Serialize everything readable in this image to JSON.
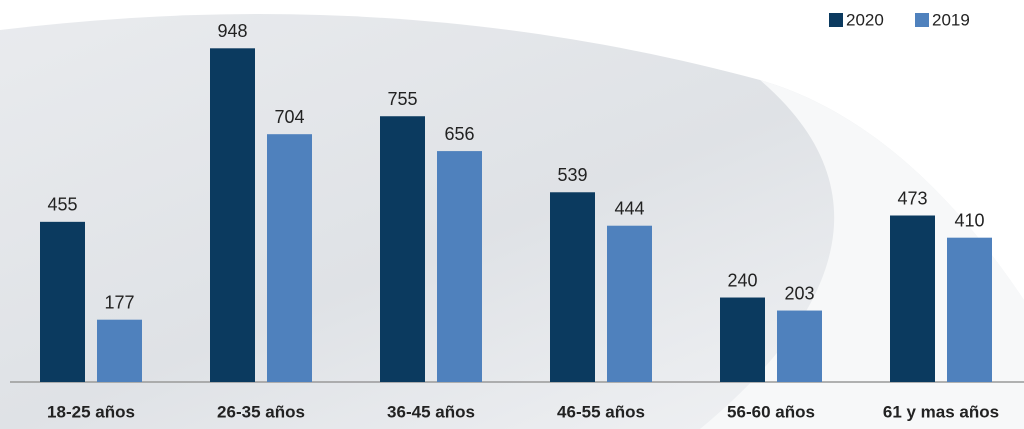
{
  "chart_data": {
    "type": "bar",
    "categories": [
      "18-25 años",
      "26-35 años",
      "36-45 años",
      "46-55 años",
      "56-60 años",
      "61 y mas años"
    ],
    "series": [
      {
        "name": "2020",
        "color": "#0b3a5f",
        "values": [
          455,
          948,
          755,
          539,
          240,
          473
        ]
      },
      {
        "name": "2019",
        "color": "#4f81bd",
        "values": [
          177,
          704,
          656,
          444,
          203,
          410
        ]
      }
    ],
    "ylim": [
      0,
      1000
    ],
    "legend": "top-right"
  }
}
